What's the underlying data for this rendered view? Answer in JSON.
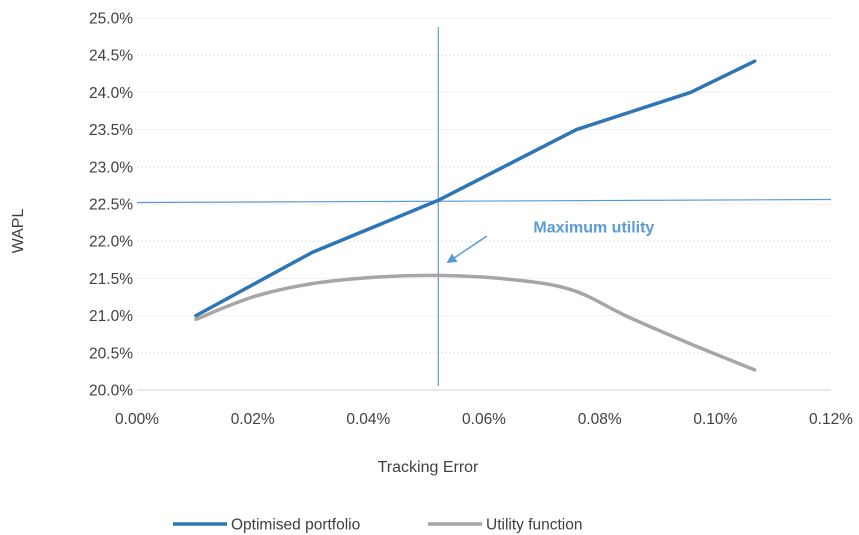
{
  "chart_data": {
    "type": "line",
    "title": "",
    "xlabel": "Tracking Error",
    "ylabel": "WAPL",
    "xlim": [
      0.0,
      0.12
    ],
    "ylim": [
      20.0,
      25.0
    ],
    "x_ticks": [
      0.0,
      0.02,
      0.04,
      0.06,
      0.08,
      0.1,
      0.12
    ],
    "x_tick_labels": [
      "0.00%",
      "0.02%",
      "0.04%",
      "0.06%",
      "0.08%",
      "0.10%",
      "0.12%"
    ],
    "y_ticks": [
      20.0,
      20.5,
      21.0,
      21.5,
      22.0,
      22.5,
      23.0,
      23.5,
      24.0,
      24.5,
      25.0
    ],
    "y_tick_labels": [
      "20.0%",
      "20.5%",
      "21.0%",
      "21.5%",
      "22.0%",
      "22.5%",
      "23.0%",
      "23.5%",
      "24.0%",
      "24.5%",
      "25.0%"
    ],
    "grid": "horizontal",
    "legend_position": "bottom",
    "series": [
      {
        "name": "Optimised portfolio",
        "color": "#2E75B6",
        "x": [
          0.0102,
          0.0303,
          0.0521,
          0.076,
          0.0957,
          0.1068
        ],
        "y": [
          21.0,
          21.85,
          22.55,
          23.5,
          24.0,
          24.42
        ]
      },
      {
        "name": "Utility function",
        "color": "#A6A6A6",
        "x": [
          0.0102,
          0.02,
          0.0303,
          0.042,
          0.0521,
          0.064,
          0.075,
          0.085,
          0.0957,
          0.1068
        ],
        "y": [
          20.95,
          21.25,
          21.43,
          21.52,
          21.54,
          21.49,
          21.35,
          20.98,
          20.62,
          20.27
        ]
      }
    ],
    "reference_lines": {
      "color": "#5B9BD5",
      "vertical_x": 0.0521,
      "horizontal": {
        "x": [
          0.0,
          0.12
        ],
        "y": [
          22.52,
          22.56
        ]
      }
    },
    "annotation": {
      "text": "Maximum utility",
      "color": "#5B9BD5",
      "text_at": {
        "x": 0.079,
        "y": 22.2
      },
      "arrow_from": {
        "x": 0.0605,
        "y": 22.07
      },
      "arrow_to": {
        "x": 0.0538,
        "y": 21.72
      }
    }
  }
}
